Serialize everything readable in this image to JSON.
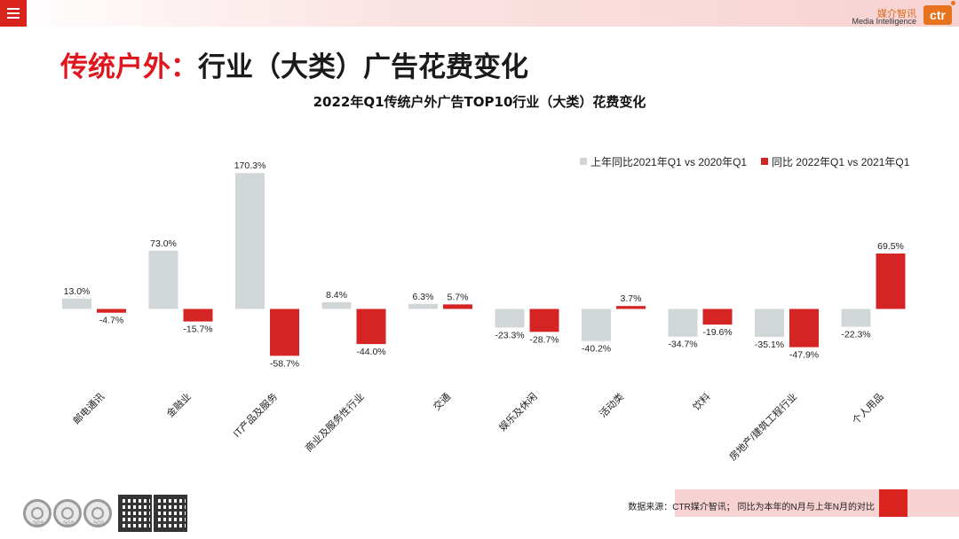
{
  "header": {
    "logo_cn": "媒介智讯",
    "logo_en": "Media Intelligence",
    "logo_badge": "ctr"
  },
  "page": {
    "title_red": "传统户外：",
    "title_black": "行业（大类）广告花费变化"
  },
  "chart_data": {
    "type": "bar",
    "title": "2022年Q1传统户外广告TOP10行业（大类）花费变化",
    "categories": [
      "邮电通讯",
      "金融业",
      "IT产品及服务",
      "商业及服务性行业",
      "交通",
      "娱乐及休闲",
      "活动类",
      "饮料",
      "房地产/建筑工程行业",
      "个人用品"
    ],
    "series": [
      {
        "name": "上年同比2021年Q1 vs 2020年Q1",
        "color": "#d1d6d9",
        "values": [
          13.0,
          73.0,
          170.3,
          8.4,
          6.3,
          -23.3,
          -40.2,
          -34.7,
          -35.1,
          -22.3
        ],
        "labels": [
          "13.0%",
          "73.0%",
          "170.3%",
          "8.4%",
          "6.3%",
          "-23.3%",
          "-40.2%",
          "-34.7%",
          "-35.1%",
          "-22.3%"
        ]
      },
      {
        "name": "同比 2022年Q1 vs 2021年Q1",
        "color": "#d42424",
        "values": [
          -4.7,
          -15.7,
          -58.7,
          -44.0,
          5.7,
          -28.7,
          3.7,
          -19.6,
          -47.9,
          69.5
        ],
        "labels": [
          "-4.7%",
          "-15.7%",
          "-58.7%",
          "-44.0%",
          "5.7%",
          "-28.7%",
          "3.7%",
          "-19.6%",
          "-47.9%",
          "69.5%"
        ]
      }
    ],
    "legend_position": "top-right",
    "grid": false
  },
  "footer": {
    "source": "数据来源：CTR媒介智讯；  同比为本年的N月与上年N月的对比",
    "badges": [
      "SGS",
      "SGS",
      "SGS"
    ]
  }
}
